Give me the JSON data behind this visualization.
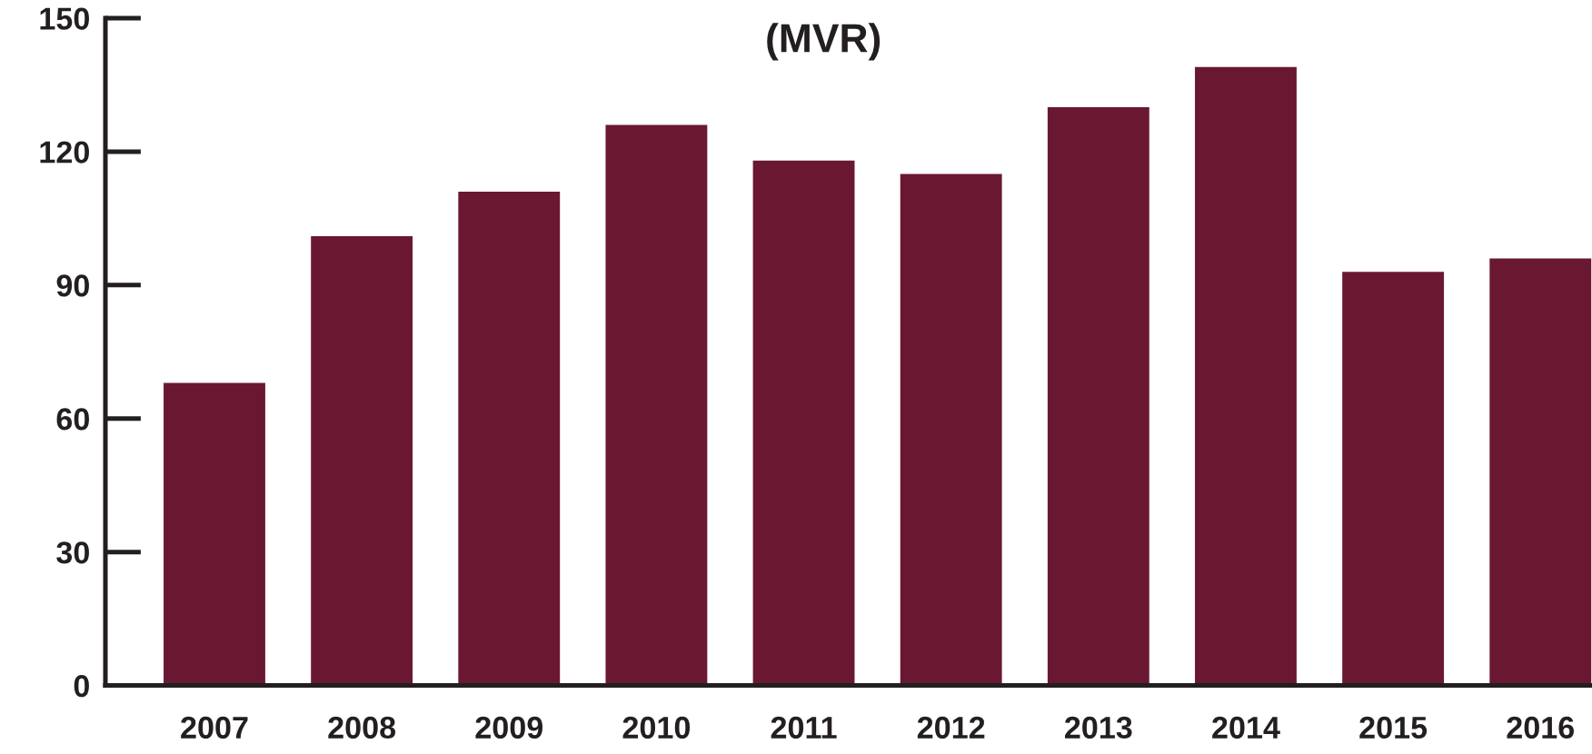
{
  "chart_data": {
    "type": "bar",
    "title": "(MVR)",
    "categories": [
      "2007",
      "2008",
      "2009",
      "2010",
      "2011",
      "2012",
      "2013",
      "2014",
      "2015",
      "2016"
    ],
    "values": [
      68,
      101,
      111,
      126,
      118,
      115,
      130,
      139,
      93,
      96
    ],
    "color": "#6a1832",
    "ylim": [
      0,
      150
    ],
    "yticks": [
      0,
      30,
      60,
      90,
      120,
      150
    ],
    "grid": false
  }
}
